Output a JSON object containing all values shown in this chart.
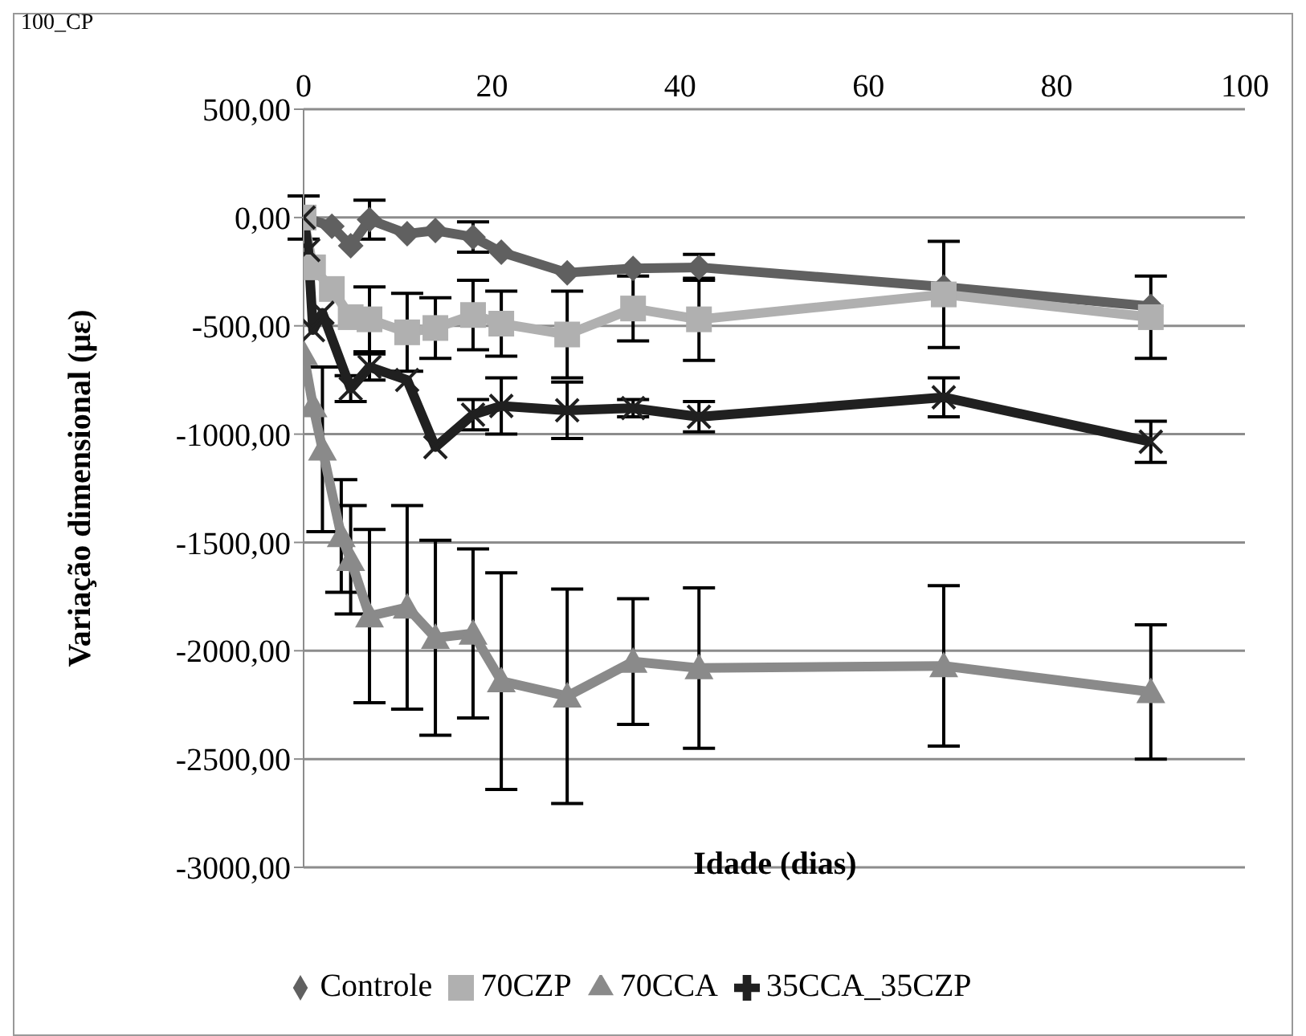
{
  "chart_data": {
    "type": "line",
    "title": "100_CP",
    "xlabel": "Idade (dias)",
    "ylabel": "Variação dimensional (με)",
    "xlim": [
      0,
      100
    ],
    "xticks": [
      0,
      20,
      40,
      60,
      80,
      100
    ],
    "ylim": [
      -3000,
      500
    ],
    "yticks": [
      {
        "value": 500,
        "label": "500,00"
      },
      {
        "value": 0,
        "label": "0,00"
      },
      {
        "value": -500,
        "label": "-500,00"
      },
      {
        "value": -1000,
        "label": "-1000,00"
      },
      {
        "value": -1500,
        "label": "-1500,00"
      },
      {
        "value": -2000,
        "label": "-2000,00"
      },
      {
        "value": -2500,
        "label": "-2500,00"
      },
      {
        "value": -3000,
        "label": "-3000,00"
      }
    ],
    "grid": "y",
    "legend": "bottom",
    "line_style": "solid",
    "series": [
      {
        "name": "Controle",
        "color": "#606060",
        "marker": "diamond",
        "x": [
          0,
          3,
          5,
          7,
          11,
          14,
          18,
          21,
          28,
          35,
          42,
          68,
          90
        ],
        "values": [
          0,
          -40,
          -130,
          -10,
          -75,
          -60,
          -90,
          -160,
          -255,
          -235,
          -230,
          -320,
          -410
        ],
        "errors": [
          100,
          null,
          null,
          90,
          null,
          null,
          70,
          null,
          null,
          null,
          60,
          null,
          null
        ]
      },
      {
        "name": "70CZP",
        "color": "#b0b0b0",
        "marker": "square",
        "x": [
          0,
          1,
          3,
          5,
          7,
          11,
          14,
          18,
          21,
          28,
          35,
          42,
          68,
          90
        ],
        "values": [
          0,
          -230,
          -330,
          -460,
          -470,
          -530,
          -510,
          -450,
          -490,
          -540,
          -420,
          -470,
          -355,
          -460
        ],
        "errors": [
          null,
          null,
          null,
          null,
          150,
          180,
          140,
          160,
          150,
          200,
          150,
          190,
          245,
          190
        ]
      },
      {
        "name": "70CCA",
        "color": "#8a8a8a",
        "marker": "triangle",
        "x": [
          0,
          1,
          2,
          4,
          5,
          7,
          11,
          14,
          18,
          21,
          28,
          35,
          42,
          68,
          90
        ],
        "values": [
          -630,
          -870,
          -1070,
          -1470,
          -1580,
          -1840,
          -1800,
          -1940,
          -1920,
          -2140,
          -2210,
          -2050,
          -2080,
          -2070,
          -2190
        ],
        "errors": [
          null,
          null,
          380,
          260,
          250,
          400,
          470,
          450,
          390,
          500,
          495,
          290,
          370,
          370,
          310
        ]
      },
      {
        "name": "35CCA_35CZP",
        "color": "#202020",
        "marker": "cross",
        "x": [
          0,
          0.5,
          1,
          2,
          5,
          7,
          11,
          14,
          18,
          21,
          28,
          35,
          42,
          68,
          90
        ],
        "values": [
          0,
          -150,
          -520,
          -440,
          -790,
          -690,
          -750,
          -1060,
          -910,
          -870,
          -890,
          -880,
          -920,
          -830,
          -1035
        ],
        "errors": [
          null,
          null,
          null,
          null,
          60,
          60,
          null,
          null,
          70,
          130,
          130,
          40,
          70,
          90,
          95
        ]
      }
    ]
  }
}
